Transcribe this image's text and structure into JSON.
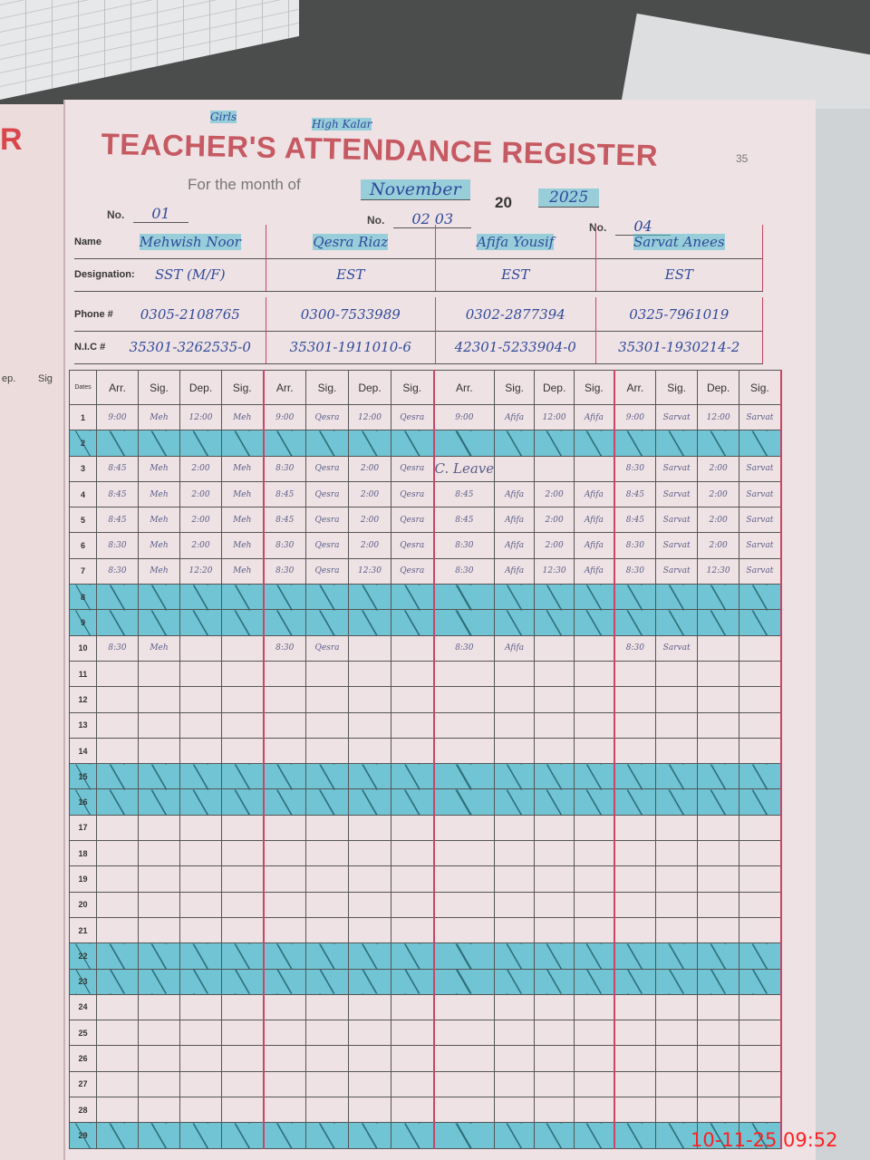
{
  "register": {
    "title": "TEACHER'S ATTENDANCE REGISTER",
    "month_label": "For the month of",
    "month": "November",
    "year_prefix": "20",
    "year": "2025",
    "page_number": "35",
    "stamp_1": "Girls",
    "stamp_2": "High Kalar",
    "no_label": "No.",
    "numbers": [
      "01",
      "02 03",
      "04"
    ]
  },
  "labels": {
    "name": "Name",
    "designation": "Designation:",
    "phone": "Phone #",
    "nic": "N.I.C #",
    "date": "Dates"
  },
  "teachers": [
    {
      "name": "Mehwish Noor",
      "designation": "SST (M/F)",
      "phone": "0305-2108765",
      "nic": "35301-3262535-0"
    },
    {
      "name": "Qesra Riaz",
      "designation": "EST",
      "phone": "0300-7533989",
      "nic": "35301-1911010-6"
    },
    {
      "name": "Afifa Yousif",
      "designation": "EST",
      "phone": "0302-2877394",
      "nic": "42301-5233904-0"
    },
    {
      "name": "Sarvat Anees",
      "designation": "EST",
      "phone": "0325-7961019",
      "nic": "35301-1930214-2"
    }
  ],
  "column_headers": [
    "Arr.",
    "Sig.",
    "Dep.",
    "Sig."
  ],
  "left_page_headers": [
    "ep.",
    "Sig"
  ],
  "left_page_letter": "R",
  "off_days": [
    2,
    8,
    9,
    15,
    16,
    22,
    23,
    29
  ],
  "rows": {
    "1": [
      "9:00",
      "Meh",
      "12:00",
      "Meh",
      "9:00",
      "Qesra",
      "12:00",
      "Qesra",
      "9:00",
      "Afifa",
      "12:00",
      "Afifa",
      "9:00",
      "Sarvat",
      "12:00",
      "Sarvat"
    ],
    "3": [
      "8:45",
      "Meh",
      "2:00",
      "Meh",
      "8:30",
      "Qesra",
      "2:00",
      "Qesra",
      "C. Leave",
      "",
      "",
      "",
      "8:30",
      "Sarvat",
      "2:00",
      "Sarvat"
    ],
    "4": [
      "8:45",
      "Meh",
      "2:00",
      "Meh",
      "8:45",
      "Qesra",
      "2:00",
      "Qesra",
      "8:45",
      "Afifa",
      "2:00",
      "Afifa",
      "8:45",
      "Sarvat",
      "2:00",
      "Sarvat"
    ],
    "5": [
      "8:45",
      "Meh",
      "2:00",
      "Meh",
      "8:45",
      "Qesra",
      "2:00",
      "Qesra",
      "8:45",
      "Afifa",
      "2:00",
      "Afifa",
      "8:45",
      "Sarvat",
      "2:00",
      "Sarvat"
    ],
    "6": [
      "8:30",
      "Meh",
      "2:00",
      "Meh",
      "8:30",
      "Qesra",
      "2:00",
      "Qesra",
      "8:30",
      "Afifa",
      "2:00",
      "Afifa",
      "8:30",
      "Sarvat",
      "2:00",
      "Sarvat"
    ],
    "7": [
      "8:30",
      "Meh",
      "12:20",
      "Meh",
      "8:30",
      "Qesra",
      "12:30",
      "Qesra",
      "8:30",
      "Afifa",
      "12:30",
      "Afifa",
      "8:30",
      "Sarvat",
      "12:30",
      "Sarvat"
    ],
    "10": [
      "8:30",
      "Meh",
      "",
      "",
      "8:30",
      "Qesra",
      "",
      "",
      "8:30",
      "Afifa",
      "",
      "",
      "8:30",
      "Sarvat",
      "",
      ""
    ]
  },
  "timestamp": "10-11-25  09:52"
}
